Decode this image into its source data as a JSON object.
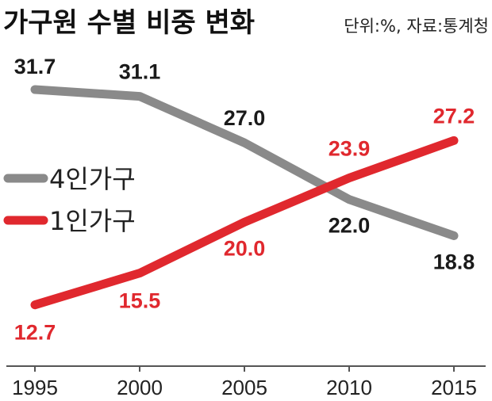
{
  "chart_data": {
    "type": "line",
    "title": "가구원 수별 비중 변화",
    "subtitle": "단위:%, 자료:통계청",
    "categories": [
      "1995",
      "2000",
      "2005",
      "2010",
      "2015"
    ],
    "series": [
      {
        "name": "4인가구",
        "color": "#8a8a8a",
        "values": [
          31.7,
          31.1,
          27.0,
          22.0,
          18.8
        ]
      },
      {
        "name": "1인가구",
        "color": "#e0282e",
        "values": [
          12.7,
          15.5,
          20.0,
          23.9,
          27.2
        ]
      }
    ],
    "label_colors": {
      "4인가구": "#1a1a1a",
      "1인가구": "#e0282e"
    },
    "grid": false,
    "legend_position": "left"
  }
}
